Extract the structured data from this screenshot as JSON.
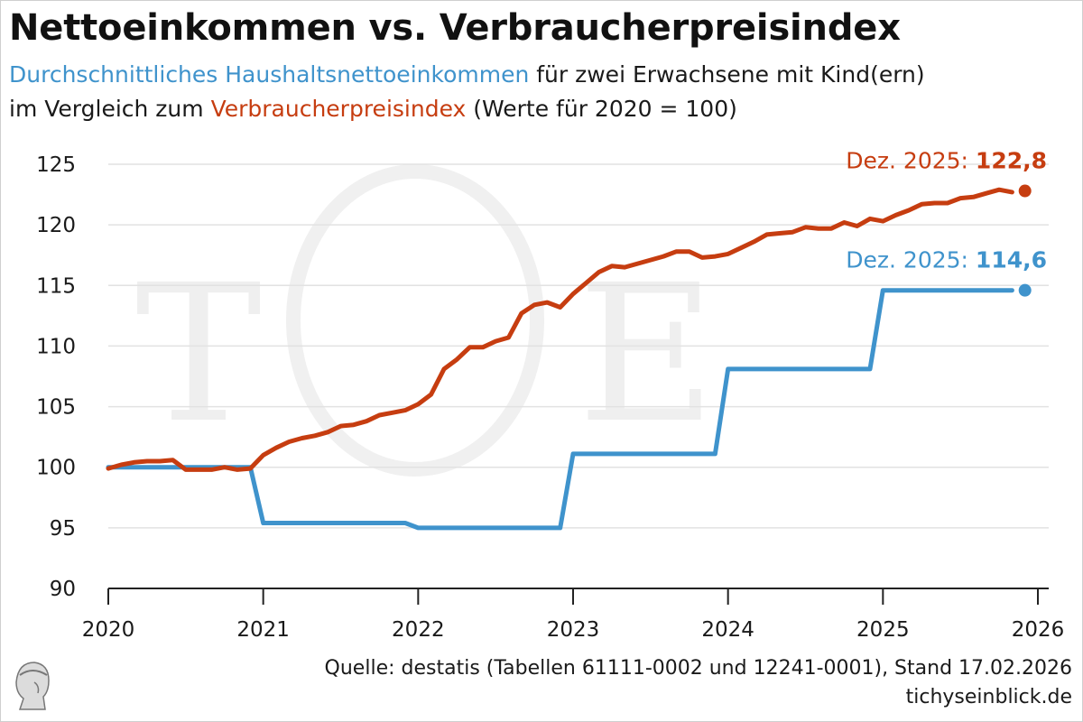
{
  "header": {
    "title": "Nettoeinkommen vs. Verbraucherpreisindex",
    "subtitle_income": "Durchschnittliches Haushaltsnettoeinkommen",
    "subtitle_mid1": " für zwei Erwachsene mit Kind(ern)",
    "subtitle_mid2": "im Vergleich zum ",
    "subtitle_cpi": "Verbraucherpreisindex",
    "subtitle_end": " (Werte für 2020 = 100)"
  },
  "footer": {
    "source": "Quelle: destatis (Tabellen 61111-0002 und 12241-0001), Stand 17.02.2026",
    "site": "tichyseinblick.de"
  },
  "colors": {
    "income": "#3f93cc",
    "cpi": "#c63d10",
    "grid": "#e2e2e2",
    "axis": "#222222"
  },
  "chart_data": {
    "type": "line",
    "title": "Nettoeinkommen vs. Verbraucherpreisindex",
    "xlabel": "",
    "ylabel": "",
    "xlim": [
      2020,
      2026
    ],
    "ylim": [
      90,
      125
    ],
    "yticks": [
      90,
      95,
      100,
      105,
      110,
      115,
      120,
      125
    ],
    "xticks": [
      2020,
      2021,
      2022,
      2023,
      2024,
      2025,
      2026
    ],
    "series": [
      {
        "name": "Verbraucherpreisindex",
        "color": "#c63d10",
        "x": [
          2020.0,
          2020.0833,
          2020.1667,
          2020.25,
          2020.3333,
          2020.4167,
          2020.5,
          2020.5833,
          2020.6667,
          2020.75,
          2020.8333,
          2020.9167,
          2021.0,
          2021.0833,
          2021.1667,
          2021.25,
          2021.3333,
          2021.4167,
          2021.5,
          2021.5833,
          2021.6667,
          2021.75,
          2021.8333,
          2021.9167,
          2022.0,
          2022.0833,
          2022.1667,
          2022.25,
          2022.3333,
          2022.4167,
          2022.5,
          2022.5833,
          2022.6667,
          2022.75,
          2022.8333,
          2022.9167,
          2023.0,
          2023.0833,
          2023.1667,
          2023.25,
          2023.3333,
          2023.4167,
          2023.5,
          2023.5833,
          2023.6667,
          2023.75,
          2023.8333,
          2023.9167,
          2024.0,
          2024.0833,
          2024.1667,
          2024.25,
          2024.3333,
          2024.4167,
          2024.5,
          2024.5833,
          2024.6667,
          2024.75,
          2024.8333,
          2024.9167,
          2025.0,
          2025.0833,
          2025.1667,
          2025.25,
          2025.3333,
          2025.4167,
          2025.5,
          2025.5833,
          2025.6667,
          2025.75,
          2025.8333
        ],
        "values": [
          99.9,
          100.2,
          100.4,
          100.5,
          100.5,
          100.6,
          99.8,
          99.8,
          99.8,
          100.0,
          99.8,
          99.9,
          101.0,
          101.6,
          102.1,
          102.4,
          102.6,
          102.9,
          103.4,
          103.5,
          103.8,
          104.3,
          104.5,
          104.7,
          105.2,
          106.0,
          108.1,
          108.9,
          109.9,
          109.9,
          110.4,
          110.7,
          112.7,
          113.4,
          113.6,
          113.2,
          114.3,
          115.2,
          116.1,
          116.6,
          116.5,
          116.8,
          117.1,
          117.4,
          117.8,
          117.8,
          117.3,
          117.4,
          117.6,
          118.1,
          118.6,
          119.2,
          119.3,
          119.4,
          119.8,
          119.7,
          119.7,
          120.2,
          119.9,
          120.5,
          120.3,
          120.8,
          121.2,
          121.7,
          121.8,
          121.8,
          122.2,
          122.3,
          122.6,
          122.9,
          122.7
        ]
      },
      {
        "name": "Haushaltsnettoeinkommen",
        "color": "#3f93cc",
        "x": [
          2020.0,
          2020.9167,
          2021.0,
          2021.9167,
          2022.0,
          2022.9167,
          2023.0,
          2023.9167,
          2024.0,
          2024.9167,
          2025.0,
          2025.8333
        ],
        "values": [
          100.0,
          100.0,
          95.4,
          95.4,
          95.0,
          95.0,
          101.1,
          101.1,
          108.1,
          108.1,
          114.6,
          114.6
        ]
      }
    ],
    "endpoints": [
      {
        "label_prefix": "Dez. 2025: ",
        "value_text": "122,8",
        "x": 2025.9167,
        "value": 122.8,
        "color": "#c63d10"
      },
      {
        "label_prefix": "Dez. 2025: ",
        "value_text": "114,6",
        "x": 2025.9167,
        "value": 114.6,
        "color": "#3f93cc"
      }
    ],
    "watermark": "TE"
  }
}
